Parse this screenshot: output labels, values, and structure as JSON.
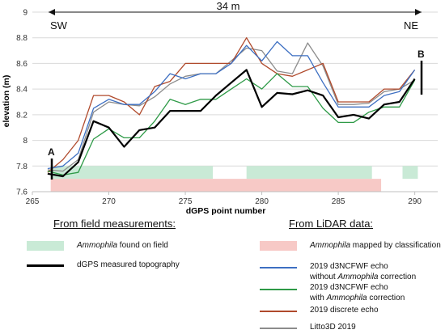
{
  "chart_data": {
    "type": "line",
    "xlabel": "dGPS point number",
    "ylabel": "elevation (m)",
    "xlim": [
      265,
      291.5
    ],
    "ylim": [
      7.6,
      9.0
    ],
    "xticks": [
      265,
      270,
      275,
      280,
      285,
      290
    ],
    "yticks": [
      7.6,
      7.8,
      8,
      8.2,
      8.4,
      8.6,
      8.8,
      9
    ],
    "ytick_labels": [
      "7.6",
      "7.8",
      "8",
      "8.2",
      "8.4",
      "8.6",
      "8.8",
      "9"
    ],
    "grid": "horizontal",
    "annotations": {
      "distance": "34 m",
      "left_dir": "SW",
      "right_dir": "NE",
      "point_a": "A",
      "point_b": "B"
    },
    "bands": [
      {
        "name": "field",
        "color": "#c9ead6",
        "y0": 7.7,
        "y1": 7.8,
        "spans": [
          [
            266.2,
            276.8
          ],
          [
            279.0,
            287.2
          ],
          [
            289.2,
            290.2
          ]
        ]
      },
      {
        "name": "lidar",
        "color": "#f7c9c6",
        "y0": 7.6,
        "y1": 7.7,
        "spans": [
          [
            266.2,
            287.8
          ]
        ]
      }
    ],
    "series": [
      {
        "key": "litto",
        "color": "#8c8c8c",
        "width": 1.3,
        "x": [
          266,
          267,
          268,
          269,
          270,
          271,
          272,
          273,
          274,
          275,
          276,
          277,
          278,
          279,
          280,
          281,
          282,
          283,
          284,
          285,
          286,
          287,
          288,
          289,
          290
        ],
        "y": [
          7.77,
          7.76,
          7.85,
          8.22,
          8.3,
          8.28,
          8.27,
          8.34,
          8.44,
          8.5,
          8.52,
          8.52,
          8.62,
          8.72,
          8.7,
          8.54,
          8.52,
          8.76,
          8.58,
          8.28,
          8.28,
          8.29,
          8.38,
          8.4,
          8.47
        ]
      },
      {
        "key": "discrete",
        "color": "#b04a2c",
        "width": 1.3,
        "x": [
          266,
          267,
          268,
          269,
          270,
          271,
          272,
          273,
          274,
          275,
          276,
          277,
          278,
          279,
          280,
          281,
          282,
          283,
          284,
          285,
          286,
          287,
          288,
          289,
          290
        ],
        "y": [
          7.75,
          7.85,
          8.0,
          8.35,
          8.35,
          8.3,
          8.2,
          8.42,
          8.46,
          8.6,
          8.6,
          8.6,
          8.6,
          8.8,
          8.6,
          8.52,
          8.5,
          8.55,
          8.6,
          8.3,
          8.3,
          8.3,
          8.4,
          8.4,
          8.55
        ]
      },
      {
        "key": "blue",
        "color": "#3d6fc2",
        "width": 1.3,
        "x": [
          266,
          267,
          268,
          269,
          270,
          271,
          272,
          273,
          274,
          275,
          276,
          277,
          278,
          279,
          280,
          281,
          282,
          283,
          284,
          285,
          286,
          287,
          288,
          289,
          290
        ],
        "y": [
          7.78,
          7.8,
          7.9,
          8.25,
          8.32,
          8.28,
          8.28,
          8.38,
          8.52,
          8.48,
          8.52,
          8.52,
          8.6,
          8.74,
          8.62,
          8.77,
          8.66,
          8.66,
          8.45,
          8.26,
          8.26,
          8.26,
          8.35,
          8.38,
          8.55
        ]
      },
      {
        "key": "green",
        "color": "#2e9a47",
        "width": 1.3,
        "x": [
          266,
          267,
          268,
          269,
          270,
          271,
          272,
          273,
          274,
          275,
          276,
          277,
          278,
          279,
          280,
          281,
          282,
          283,
          284,
          285,
          286,
          287,
          288,
          289,
          290
        ],
        "y": [
          7.76,
          7.73,
          7.75,
          8.01,
          8.09,
          8.02,
          8.02,
          8.15,
          8.32,
          8.28,
          8.32,
          8.32,
          8.4,
          8.48,
          8.4,
          8.52,
          8.42,
          8.42,
          8.25,
          8.14,
          8.14,
          8.22,
          8.26,
          8.26,
          8.47
        ]
      },
      {
        "key": "dgps",
        "color": "#000000",
        "width": 2.2,
        "x": [
          266,
          267,
          268,
          269,
          270,
          271,
          272,
          273,
          274,
          275,
          276,
          277,
          278,
          279,
          280,
          281,
          282,
          283,
          284,
          285,
          286,
          287,
          288,
          289,
          290
        ],
        "y": [
          7.74,
          7.72,
          7.83,
          8.15,
          8.1,
          7.95,
          8.08,
          8.1,
          8.23,
          8.23,
          8.23,
          8.35,
          8.45,
          8.55,
          8.26,
          8.37,
          8.36,
          8.39,
          8.35,
          8.18,
          8.2,
          8.17,
          8.28,
          8.3,
          8.48
        ]
      }
    ]
  },
  "legend": {
    "field_heading": "From field measurements:",
    "lidar_heading": "From LiDAR data:",
    "items": {
      "field_ammophila_italic": "Ammophila",
      "field_ammophila_rest": " found on field",
      "dgps": "dGPS measured topography",
      "lidar_ammophila_italic": "Ammophila",
      "lidar_ammophila_rest": " mapped by classification",
      "blue_line1": "2019 d3NCFWF echo",
      "blue_line2_pre": "without ",
      "blue_line2_italic": "Ammophila",
      "blue_line2_post": " correction",
      "green_line1": "2019 d3NCFWF echo",
      "green_line2_pre": "with ",
      "green_line2_italic": "Ammophila",
      "green_line2_post": " correction",
      "discrete": "2019 discrete echo",
      "litto": "Litto3D    2019"
    },
    "colors": {
      "field_band": "#c9ead6",
      "lidar_band": "#f7c9c6",
      "dgps": "#000000",
      "blue": "#3d6fc2",
      "green": "#2e9a47",
      "discrete": "#b04a2c",
      "litto": "#8c8c8c"
    }
  }
}
